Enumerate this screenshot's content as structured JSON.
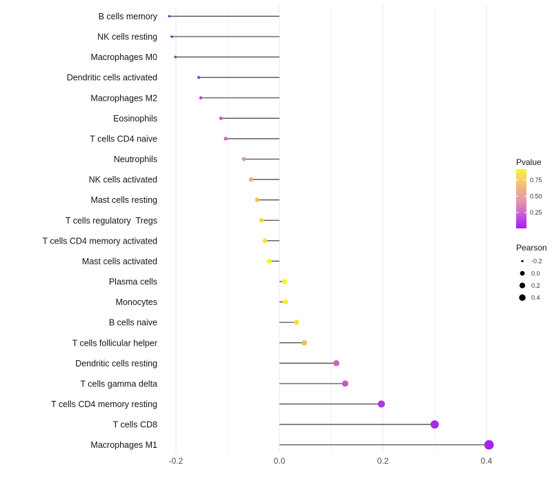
{
  "chart_data": {
    "type": "lollipop",
    "orientation": "horizontal",
    "title": "",
    "xlabel": "",
    "ylabel": "",
    "xlim": [
      -0.225,
      0.44
    ],
    "x_major_ticks": [
      -0.2,
      0.0,
      0.2,
      0.4
    ],
    "x_major_tick_labels": [
      "-0.2",
      "0.0",
      "0.2",
      "0.4"
    ],
    "x_minor_ticks": [
      -0.1,
      0.1,
      0.3
    ],
    "grid": true,
    "rows": [
      {
        "label": "B cells memory",
        "pearson": -0.213,
        "color": "#8A2BCE"
      },
      {
        "label": "NK cells resting",
        "pearson": -0.208,
        "color": "#8E2ED2"
      },
      {
        "label": "Macrophages M0",
        "pearson": -0.201,
        "color": "#9132D4"
      },
      {
        "label": "Dendritic cells activated",
        "pearson": -0.156,
        "color": "#A33CD4"
      },
      {
        "label": "Macrophages M2",
        "pearson": -0.152,
        "color": "#AF4ACF"
      },
      {
        "label": "Eosinophils",
        "pearson": -0.113,
        "color": "#C55FC2"
      },
      {
        "label": "T cells CD4 naive",
        "pearson": -0.104,
        "color": "#C967BB"
      },
      {
        "label": "Neutrophils",
        "pearson": -0.069,
        "color": "#E59B82"
      },
      {
        "label": "NK cells activated",
        "pearson": -0.055,
        "color": "#EBAE63"
      },
      {
        "label": "Mast cells resting",
        "pearson": -0.043,
        "color": "#EDC14B"
      },
      {
        "label": "T cells regulatory  Tregs",
        "pearson": -0.035,
        "color": "#F0DA3A"
      },
      {
        "label": "T cells CD4 memory activated",
        "pearson": -0.028,
        "color": "#F3E52E"
      },
      {
        "label": "Mast cells activated",
        "pearson": -0.02,
        "color": "#F7F514"
      },
      {
        "label": "Plasma cells",
        "pearson": 0.01,
        "color": "#F8F618"
      },
      {
        "label": "Monocytes",
        "pearson": 0.012,
        "color": "#F7F322"
      },
      {
        "label": "B cells naive",
        "pearson": 0.033,
        "color": "#F3DE3A"
      },
      {
        "label": "T cells follicular helper",
        "pearson": 0.048,
        "color": "#EFBF55"
      },
      {
        "label": "Dendritic cells resting",
        "pearson": 0.11,
        "color": "#CB65BD"
      },
      {
        "label": "T cells gamma delta",
        "pearson": 0.127,
        "color": "#C756C7"
      },
      {
        "label": "T cells CD4 memory resting",
        "pearson": 0.197,
        "color": "#AC38DC"
      },
      {
        "label": "T cells CD8",
        "pearson": 0.3,
        "color": "#A52CE6"
      },
      {
        "label": "Macrophages M1",
        "pearson": 0.405,
        "color": "#A326EC"
      }
    ],
    "stem_color": "#3f3f3f",
    "major_grid_color": "#e7e7e7",
    "minor_grid_color": "#f2f2f2",
    "axis_text_color": "#4d4d4d",
    "label_text_color": "#141414",
    "legend_pvalue": {
      "title": "Pvalue",
      "tick_labels": [
        "0.75",
        "0.50",
        "0.25"
      ],
      "gradient_stops": [
        {
          "offset": 0,
          "color": "#F9F22C"
        },
        {
          "offset": 0.18,
          "color": "#F3D06E"
        },
        {
          "offset": 0.38,
          "color": "#ECAC8C"
        },
        {
          "offset": 0.55,
          "color": "#E294AC"
        },
        {
          "offset": 0.72,
          "color": "#CE6BD0"
        },
        {
          "offset": 0.88,
          "color": "#B63BEA"
        },
        {
          "offset": 1,
          "color": "#A81BF2"
        }
      ]
    },
    "legend_pearson": {
      "title": "Pearson",
      "entries": [
        {
          "label": "-0.2",
          "radius": 1.6
        },
        {
          "label": "0.0",
          "radius": 3.4
        },
        {
          "label": "0.2",
          "radius": 4.1
        },
        {
          "label": "0.4",
          "radius": 4.7
        }
      ],
      "dot_color": "#000000"
    }
  }
}
